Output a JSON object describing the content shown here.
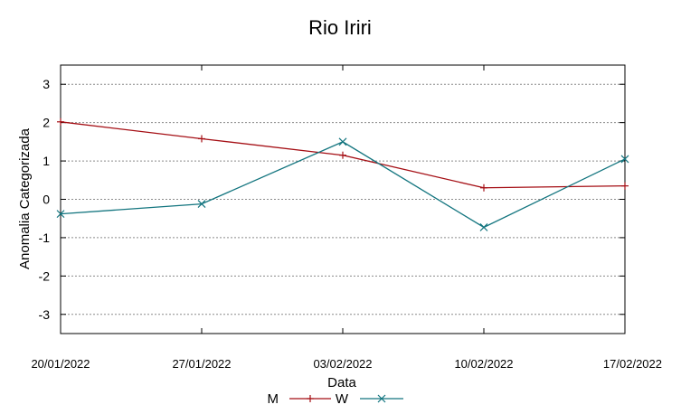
{
  "chart_data": {
    "type": "line",
    "title": "Rio Iriri",
    "xlabel": "Data",
    "ylabel": "Anomalia Categorizada",
    "categories": [
      "20/01/2022",
      "27/01/2022",
      "03/02/2022",
      "10/02/2022",
      "17/02/2022"
    ],
    "yticks": [
      "3",
      "2",
      "1",
      "0",
      "-1",
      "-2",
      "-3"
    ],
    "ylim": [
      -3.5,
      3.5
    ],
    "grid": true,
    "legend_position": "bottom-center",
    "series": [
      {
        "name": "M",
        "values": [
          2.02,
          1.58,
          1.15,
          0.3,
          0.35
        ],
        "color": "#a50f15",
        "marker": "plus"
      },
      {
        "name": "W",
        "values": [
          -0.38,
          -0.12,
          1.5,
          -0.73,
          1.05
        ],
        "color": "#13757f",
        "marker": "cross"
      }
    ]
  }
}
